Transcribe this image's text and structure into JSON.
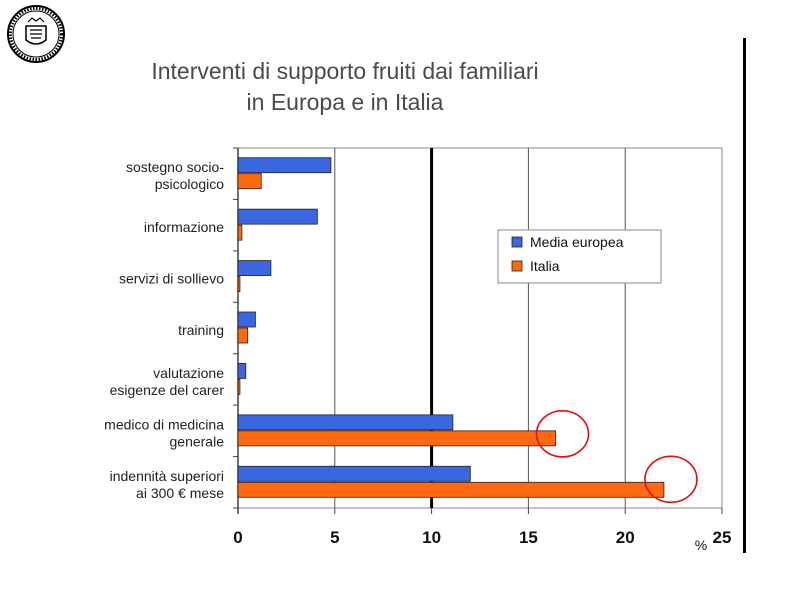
{
  "title": {
    "line1": "Interventi di supporto fruiti dai familiari",
    "line2": "in Europa e in Italia"
  },
  "chart_data": {
    "type": "bar",
    "orientation": "horizontal",
    "title": "Interventi di supporto fruiti dai familiari in Europa e in Italia",
    "xlabel": "%",
    "xlim": [
      0,
      25
    ],
    "xticks": [
      0,
      5,
      10,
      15,
      20,
      25
    ],
    "categories": [
      [
        "sostegno socio-",
        "psicologico"
      ],
      [
        "informazione"
      ],
      [
        "servizi di sollievo"
      ],
      [
        "training"
      ],
      [
        "valutazione",
        "esigenze del carer"
      ],
      [
        "medico di medicina",
        "generale"
      ],
      [
        "indennità superiori",
        "ai 300 € mese"
      ]
    ],
    "series": [
      {
        "name": "Media europea",
        "color": "#3a66e0",
        "values": [
          4.8,
          4.1,
          1.7,
          0.9,
          0.4,
          11.1,
          12.0
        ]
      },
      {
        "name": "Italia",
        "color": "#ff6a10",
        "values": [
          1.2,
          0.2,
          0.1,
          0.5,
          0.1,
          16.4,
          22.0
        ]
      }
    ],
    "legend": "inside-upper-right",
    "grid": true,
    "highlighted": [
      "medico di medicina generale - Italia",
      "indennità superiori ai 300 € mese - Italia"
    ]
  }
}
